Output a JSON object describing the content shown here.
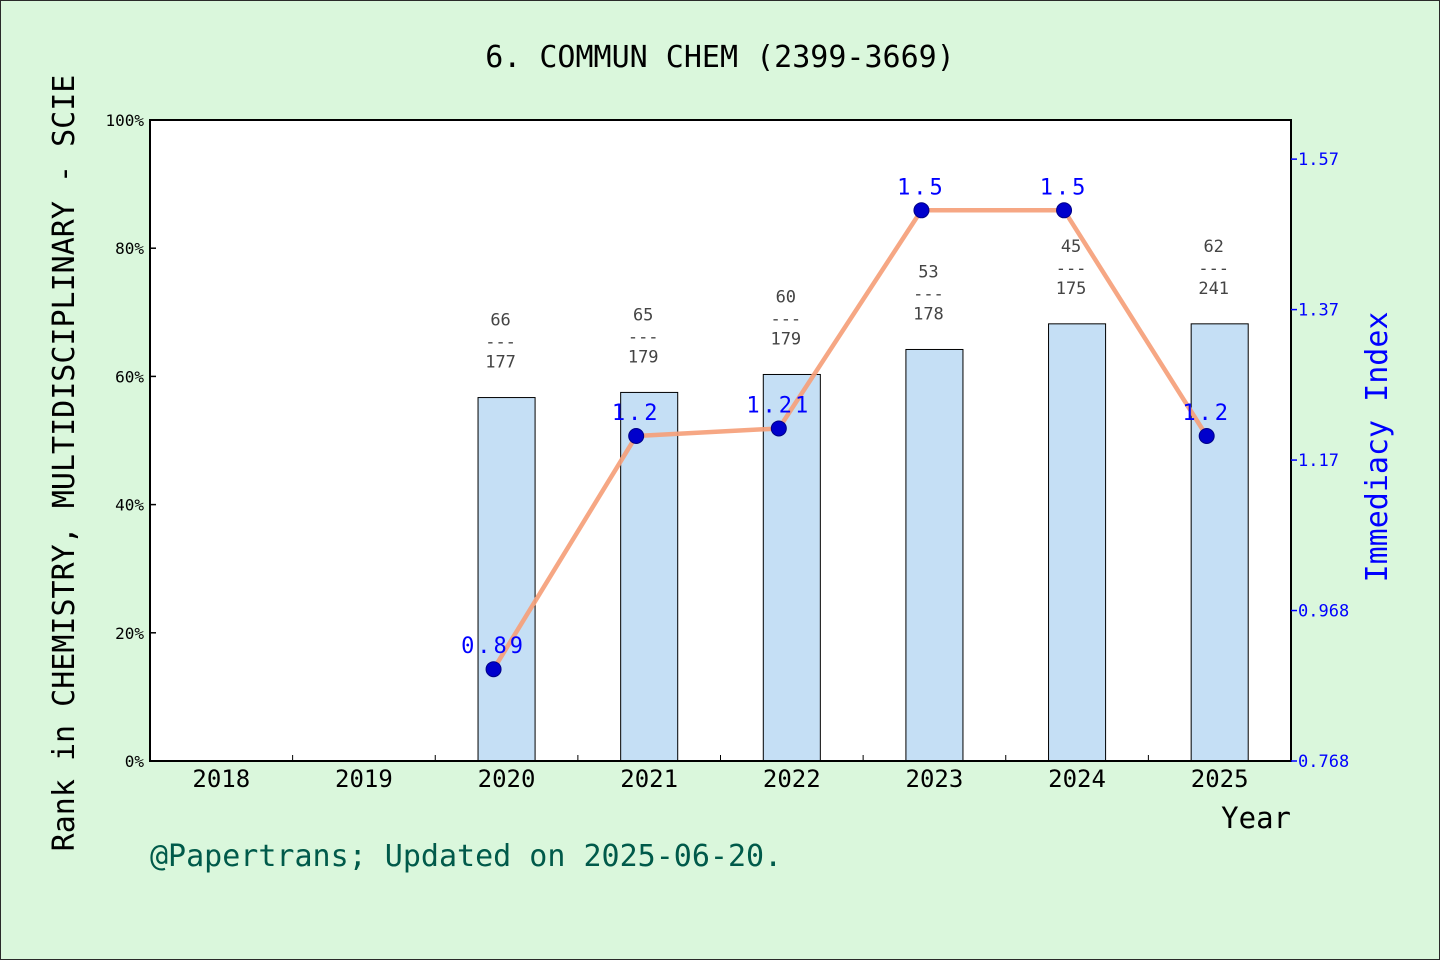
{
  "chart_data": {
    "type": "bar",
    "title": "6. COMMUN CHEM (2399-3669)",
    "xlabel": "Year",
    "ylabel": "Rank in CHEMISTRY, MULTIDISCIPLINARY - SCIE",
    "y2label": "Immediacy Index",
    "categories": [
      "2018",
      "2019",
      "2020",
      "2021",
      "2022",
      "2023",
      "2024",
      "2025"
    ],
    "ylim": [
      0,
      100
    ],
    "yticks": [
      "0%",
      "20%",
      "40%",
      "60%",
      "80%",
      "100%"
    ],
    "y2lim": [
      0.768,
      1.62
    ],
    "y2ticks": [
      "0.768",
      "0.968",
      "1.17",
      "1.37",
      "1.57"
    ],
    "grid": false,
    "series": [
      {
        "kind": "bar",
        "values": [
          null,
          null,
          56.7,
          57.5,
          60.3,
          64.2,
          68.2,
          68.2
        ],
        "rank_labels": [
          null,
          null,
          {
            "rank": "66",
            "total": "177"
          },
          {
            "rank": "65",
            "total": "179"
          },
          {
            "rank": "60",
            "total": "179"
          },
          {
            "rank": "53",
            "total": "178"
          },
          {
            "rank": "45",
            "total": "175"
          },
          {
            "rank": "62",
            "total": "241"
          }
        ]
      },
      {
        "kind": "line",
        "axis": "right",
        "values": [
          null,
          null,
          0.89,
          1.2,
          1.21,
          1.5,
          1.5,
          1.2
        ],
        "labels": [
          null,
          null,
          "0.89",
          "1.2",
          "1.21",
          "1.5",
          "1.5",
          "1.2"
        ]
      }
    ],
    "colors": {
      "bar_fill": "#c5dff5",
      "line": "#f5a07a",
      "marker": "#0000cc",
      "right_axis": "#0000ff",
      "footer_text": "#005a4a"
    }
  },
  "footer": "@Papertrans; Updated on 2025-06-20."
}
